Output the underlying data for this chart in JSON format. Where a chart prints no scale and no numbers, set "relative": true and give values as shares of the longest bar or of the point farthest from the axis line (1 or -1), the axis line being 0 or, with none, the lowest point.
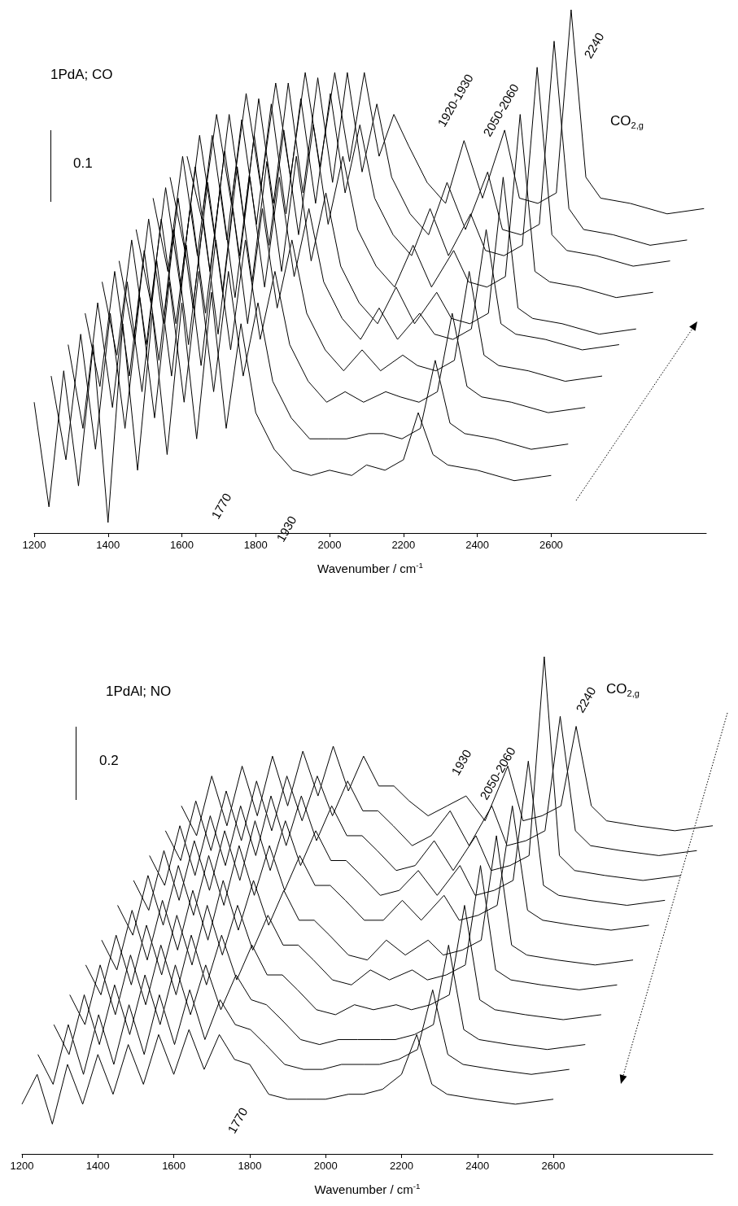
{
  "chart_data": [
    {
      "type": "line",
      "title": "1PdA; CO",
      "xlabel": "Wavenumber / cm$^{-1}$",
      "relative": true,
      "marker": "none",
      "line_style": "solid",
      "xlim": [
        1200,
        3020
      ],
      "xticks": [
        1200,
        1400,
        1600,
        1800,
        2000,
        2200,
        2400,
        2600
      ],
      "annotations": [
        "0.1",
        "CO$_{2,g}$",
        "1770",
        "1930",
        "1920-1930",
        "2050-2060",
        "2240"
      ],
      "series": [
        {
          "color": "#000000",
          "x": [
            1200,
            1240,
            1280,
            1320,
            1360,
            1400,
            1440,
            1480,
            1520,
            1560,
            1600,
            1640,
            1680,
            1720,
            1760,
            1800,
            1850,
            1900,
            1950,
            2000,
            2060,
            2100,
            2150,
            2200,
            2240,
            2280,
            2320,
            2400,
            2500,
            2600
          ],
          "values": [
            0.25,
            0.05,
            0.31,
            0.09,
            0.36,
            0.02,
            0.4,
            0.12,
            0.42,
            0.15,
            0.44,
            0.18,
            0.46,
            0.2,
            0.4,
            0.23,
            0.16,
            0.12,
            0.11,
            0.12,
            0.11,
            0.13,
            0.12,
            0.14,
            0.23,
            0.15,
            0.13,
            0.12,
            0.1,
            0.11
          ]
        },
        {
          "color": "#000000",
          "x": [
            1246,
            1286,
            1326,
            1366,
            1406,
            1446,
            1486,
            1526,
            1566,
            1606,
            1646,
            1686,
            1726,
            1766,
            1806,
            1846,
            1896,
            1946,
            1996,
            2046,
            2106,
            2146,
            2196,
            2246,
            2286,
            2326,
            2366,
            2446,
            2546,
            2646
          ],
          "values": [
            0.3,
            0.14,
            0.38,
            0.16,
            0.42,
            0.2,
            0.45,
            0.22,
            0.48,
            0.25,
            0.5,
            0.27,
            0.5,
            0.3,
            0.44,
            0.29,
            0.22,
            0.18,
            0.18,
            0.18,
            0.19,
            0.19,
            0.18,
            0.2,
            0.33,
            0.21,
            0.19,
            0.18,
            0.16,
            0.17
          ]
        },
        {
          "color": "#000000",
          "x": [
            1292,
            1332,
            1372,
            1412,
            1452,
            1492,
            1532,
            1572,
            1612,
            1652,
            1692,
            1732,
            1772,
            1812,
            1852,
            1892,
            1942,
            1992,
            2042,
            2092,
            2152,
            2192,
            2242,
            2292,
            2332,
            2372,
            2412,
            2492,
            2592,
            2692
          ],
          "values": [
            0.36,
            0.2,
            0.44,
            0.24,
            0.48,
            0.27,
            0.52,
            0.3,
            0.55,
            0.32,
            0.56,
            0.35,
            0.56,
            0.37,
            0.5,
            0.36,
            0.29,
            0.25,
            0.27,
            0.25,
            0.27,
            0.26,
            0.25,
            0.27,
            0.42,
            0.28,
            0.26,
            0.25,
            0.23,
            0.24
          ]
        },
        {
          "color": "#000000",
          "x": [
            1338,
            1378,
            1418,
            1458,
            1498,
            1538,
            1578,
            1618,
            1658,
            1698,
            1738,
            1778,
            1818,
            1858,
            1898,
            1938,
            1988,
            2038,
            2088,
            2138,
            2198,
            2238,
            2288,
            2338,
            2378,
            2418,
            2458,
            2538,
            2638,
            2738
          ],
          "values": [
            0.42,
            0.28,
            0.5,
            0.3,
            0.54,
            0.33,
            0.58,
            0.36,
            0.6,
            0.38,
            0.62,
            0.4,
            0.62,
            0.43,
            0.56,
            0.42,
            0.35,
            0.31,
            0.35,
            0.31,
            0.34,
            0.32,
            0.31,
            0.33,
            0.5,
            0.34,
            0.32,
            0.31,
            0.29,
            0.3
          ]
        },
        {
          "color": "#000000",
          "x": [
            1384,
            1424,
            1464,
            1504,
            1544,
            1584,
            1624,
            1664,
            1704,
            1744,
            1784,
            1824,
            1864,
            1904,
            1944,
            1984,
            2034,
            2084,
            2134,
            2184,
            2244,
            2284,
            2334,
            2384,
            2424,
            2464,
            2504,
            2584,
            2684,
            2784
          ],
          "values": [
            0.48,
            0.34,
            0.56,
            0.36,
            0.6,
            0.4,
            0.63,
            0.42,
            0.66,
            0.45,
            0.68,
            0.47,
            0.68,
            0.49,
            0.62,
            0.48,
            0.41,
            0.37,
            0.43,
            0.37,
            0.42,
            0.38,
            0.37,
            0.39,
            0.58,
            0.4,
            0.38,
            0.37,
            0.35,
            0.36
          ]
        },
        {
          "color": "#000000",
          "x": [
            1430,
            1470,
            1510,
            1550,
            1590,
            1630,
            1670,
            1710,
            1750,
            1790,
            1830,
            1870,
            1910,
            1950,
            1990,
            2030,
            2080,
            2130,
            2180,
            2230,
            2290,
            2330,
            2380,
            2430,
            2470,
            2510,
            2550,
            2630,
            2730,
            2830
          ],
          "values": [
            0.52,
            0.37,
            0.6,
            0.4,
            0.64,
            0.43,
            0.67,
            0.46,
            0.7,
            0.48,
            0.71,
            0.5,
            0.72,
            0.52,
            0.65,
            0.51,
            0.44,
            0.4,
            0.47,
            0.4,
            0.46,
            0.41,
            0.4,
            0.42,
            0.68,
            0.43,
            0.41,
            0.4,
            0.38,
            0.39
          ]
        },
        {
          "color": "#000000",
          "x": [
            1476,
            1516,
            1556,
            1596,
            1636,
            1676,
            1716,
            1756,
            1796,
            1836,
            1876,
            1916,
            1956,
            1996,
            2036,
            2076,
            2126,
            2176,
            2226,
            2276,
            2336,
            2376,
            2426,
            2476,
            2516,
            2556,
            2596,
            2676,
            2776,
            2876
          ],
          "values": [
            0.58,
            0.44,
            0.66,
            0.47,
            0.7,
            0.5,
            0.73,
            0.53,
            0.76,
            0.55,
            0.77,
            0.57,
            0.78,
            0.59,
            0.72,
            0.58,
            0.51,
            0.47,
            0.55,
            0.47,
            0.54,
            0.48,
            0.47,
            0.49,
            0.8,
            0.5,
            0.48,
            0.47,
            0.45,
            0.46
          ]
        },
        {
          "color": "#000000",
          "x": [
            1522,
            1562,
            1602,
            1642,
            1682,
            1722,
            1762,
            1802,
            1842,
            1882,
            1922,
            1962,
            2002,
            2042,
            2082,
            2122,
            2172,
            2222,
            2272,
            2322,
            2382,
            2422,
            2472,
            2522,
            2562,
            2602,
            2642,
            2722,
            2822,
            2922
          ],
          "values": [
            0.64,
            0.5,
            0.72,
            0.53,
            0.76,
            0.56,
            0.79,
            0.59,
            0.82,
            0.61,
            0.83,
            0.63,
            0.84,
            0.65,
            0.78,
            0.64,
            0.57,
            0.53,
            0.62,
            0.53,
            0.61,
            0.54,
            0.53,
            0.55,
            0.89,
            0.57,
            0.54,
            0.53,
            0.51,
            0.52
          ]
        },
        {
          "color": "#000000",
          "x": [
            1568,
            1608,
            1648,
            1688,
            1728,
            1768,
            1808,
            1848,
            1888,
            1928,
            1968,
            2008,
            2048,
            2088,
            2128,
            2168,
            2218,
            2268,
            2318,
            2368,
            2428,
            2468,
            2518,
            2568,
            2608,
            2648,
            2688,
            2768,
            2868,
            2968
          ],
          "values": [
            0.68,
            0.54,
            0.76,
            0.57,
            0.8,
            0.6,
            0.83,
            0.63,
            0.86,
            0.65,
            0.87,
            0.67,
            0.88,
            0.69,
            0.82,
            0.68,
            0.61,
            0.57,
            0.67,
            0.58,
            0.69,
            0.58,
            0.57,
            0.59,
            0.94,
            0.62,
            0.58,
            0.57,
            0.55,
            0.56
          ]
        },
        {
          "color": "#000000",
          "x": [
            1614,
            1654,
            1694,
            1734,
            1774,
            1814,
            1854,
            1894,
            1934,
            1974,
            2014,
            2054,
            2094,
            2134,
            2174,
            2214,
            2264,
            2314,
            2364,
            2414,
            2474,
            2514,
            2564,
            2614,
            2654,
            2694,
            2734,
            2814,
            2914,
            3014
          ],
          "values": [
            0.72,
            0.6,
            0.8,
            0.63,
            0.84,
            0.66,
            0.86,
            0.68,
            0.88,
            0.7,
            0.88,
            0.71,
            0.88,
            0.72,
            0.8,
            0.74,
            0.67,
            0.63,
            0.75,
            0.64,
            0.77,
            0.64,
            0.63,
            0.65,
            1.0,
            0.68,
            0.64,
            0.63,
            0.61,
            0.62
          ]
        }
      ]
    },
    {
      "type": "line",
      "title": "1PdAl; NO",
      "xlabel": "Wavenumber / cm$^{-1}$",
      "relative": true,
      "marker": "none",
      "line_style": "solid",
      "xlim": [
        1200,
        3020
      ],
      "xticks": [
        1200,
        1400,
        1600,
        1800,
        2000,
        2200,
        2400,
        2600
      ],
      "annotations": [
        "0.2",
        "CO$_{2,g}$",
        "1770",
        "1930",
        "2050-2060",
        "2240"
      ],
      "series": [
        {
          "color": "#000000",
          "x": [
            1200,
            1240,
            1280,
            1320,
            1360,
            1400,
            1440,
            1480,
            1520,
            1560,
            1600,
            1640,
            1680,
            1720,
            1760,
            1800,
            1850,
            1900,
            1950,
            2000,
            2060,
            2100,
            2150,
            2200,
            2240,
            2280,
            2320,
            2400,
            2500,
            2600
          ],
          "values": [
            0.1,
            0.16,
            0.06,
            0.18,
            0.1,
            0.2,
            0.12,
            0.22,
            0.14,
            0.24,
            0.16,
            0.25,
            0.17,
            0.24,
            0.19,
            0.18,
            0.12,
            0.11,
            0.11,
            0.11,
            0.12,
            0.12,
            0.13,
            0.16,
            0.24,
            0.14,
            0.12,
            0.11,
            0.1,
            0.11
          ]
        },
        {
          "color": "#000000",
          "x": [
            1242,
            1282,
            1322,
            1362,
            1402,
            1442,
            1482,
            1522,
            1562,
            1602,
            1642,
            1682,
            1722,
            1762,
            1802,
            1842,
            1892,
            1942,
            1992,
            2042,
            2102,
            2142,
            2192,
            2242,
            2282,
            2322,
            2362,
            2442,
            2542,
            2642
          ],
          "values": [
            0.2,
            0.14,
            0.26,
            0.16,
            0.28,
            0.18,
            0.3,
            0.2,
            0.32,
            0.22,
            0.33,
            0.23,
            0.31,
            0.26,
            0.25,
            0.22,
            0.18,
            0.17,
            0.17,
            0.18,
            0.18,
            0.18,
            0.19,
            0.21,
            0.33,
            0.2,
            0.18,
            0.17,
            0.16,
            0.17
          ]
        },
        {
          "color": "#000000",
          "x": [
            1284,
            1324,
            1364,
            1404,
            1444,
            1484,
            1524,
            1564,
            1604,
            1644,
            1684,
            1724,
            1764,
            1804,
            1844,
            1884,
            1934,
            1984,
            2034,
            2084,
            2144,
            2184,
            2234,
            2284,
            2324,
            2364,
            2404,
            2484,
            2584,
            2684
          ],
          "values": [
            0.26,
            0.2,
            0.32,
            0.22,
            0.34,
            0.24,
            0.36,
            0.26,
            0.38,
            0.28,
            0.38,
            0.29,
            0.36,
            0.31,
            0.3,
            0.27,
            0.23,
            0.22,
            0.23,
            0.23,
            0.23,
            0.23,
            0.24,
            0.26,
            0.42,
            0.25,
            0.23,
            0.22,
            0.21,
            0.22
          ]
        },
        {
          "color": "#000000",
          "x": [
            1326,
            1366,
            1406,
            1446,
            1486,
            1526,
            1566,
            1606,
            1646,
            1686,
            1726,
            1766,
            1806,
            1846,
            1886,
            1926,
            1976,
            2026,
            2076,
            2126,
            2186,
            2226,
            2276,
            2326,
            2366,
            2406,
            2446,
            2526,
            2626,
            2726
          ],
          "values": [
            0.32,
            0.26,
            0.38,
            0.28,
            0.4,
            0.3,
            0.42,
            0.32,
            0.44,
            0.34,
            0.44,
            0.35,
            0.42,
            0.36,
            0.36,
            0.33,
            0.29,
            0.28,
            0.3,
            0.29,
            0.3,
            0.29,
            0.3,
            0.32,
            0.5,
            0.31,
            0.29,
            0.28,
            0.27,
            0.28
          ]
        },
        {
          "color": "#000000",
          "x": [
            1368,
            1408,
            1448,
            1488,
            1528,
            1568,
            1608,
            1648,
            1688,
            1728,
            1768,
            1808,
            1848,
            1888,
            1928,
            1968,
            2018,
            2068,
            2118,
            2168,
            2228,
            2268,
            2318,
            2368,
            2408,
            2448,
            2488,
            2568,
            2668,
            2768
          ],
          "values": [
            0.38,
            0.32,
            0.44,
            0.34,
            0.46,
            0.36,
            0.48,
            0.38,
            0.5,
            0.4,
            0.5,
            0.41,
            0.48,
            0.42,
            0.42,
            0.39,
            0.35,
            0.34,
            0.37,
            0.35,
            0.37,
            0.35,
            0.36,
            0.38,
            0.58,
            0.37,
            0.35,
            0.34,
            0.33,
            0.34
          ]
        },
        {
          "color": "#000000",
          "x": [
            1410,
            1450,
            1490,
            1530,
            1570,
            1610,
            1650,
            1690,
            1730,
            1770,
            1810,
            1850,
            1890,
            1930,
            1970,
            2010,
            2060,
            2110,
            2160,
            2210,
            2270,
            2310,
            2360,
            2410,
            2450,
            2490,
            2530,
            2610,
            2710,
            2810
          ],
          "values": [
            0.43,
            0.37,
            0.49,
            0.39,
            0.51,
            0.41,
            0.53,
            0.43,
            0.55,
            0.45,
            0.55,
            0.46,
            0.53,
            0.47,
            0.47,
            0.44,
            0.4,
            0.39,
            0.43,
            0.4,
            0.43,
            0.4,
            0.41,
            0.43,
            0.64,
            0.42,
            0.4,
            0.39,
            0.38,
            0.39
          ]
        },
        {
          "color": "#000000",
          "x": [
            1452,
            1492,
            1532,
            1572,
            1612,
            1652,
            1692,
            1732,
            1772,
            1812,
            1852,
            1892,
            1932,
            1972,
            2012,
            2052,
            2102,
            2152,
            2202,
            2252,
            2312,
            2352,
            2402,
            2452,
            2492,
            2532,
            2572,
            2652,
            2752,
            2852
          ],
          "values": [
            0.5,
            0.44,
            0.56,
            0.46,
            0.58,
            0.48,
            0.6,
            0.5,
            0.62,
            0.52,
            0.62,
            0.53,
            0.6,
            0.54,
            0.54,
            0.51,
            0.47,
            0.47,
            0.51,
            0.47,
            0.52,
            0.47,
            0.48,
            0.5,
            0.7,
            0.49,
            0.47,
            0.46,
            0.45,
            0.46
          ]
        },
        {
          "color": "#000000",
          "x": [
            1494,
            1534,
            1574,
            1614,
            1654,
            1694,
            1734,
            1774,
            1814,
            1854,
            1894,
            1934,
            1974,
            2014,
            2054,
            2094,
            2144,
            2194,
            2244,
            2294,
            2354,
            2394,
            2444,
            2494,
            2534,
            2574,
            2614,
            2694,
            2794,
            2894
          ],
          "values": [
            0.55,
            0.49,
            0.61,
            0.51,
            0.63,
            0.53,
            0.65,
            0.55,
            0.67,
            0.57,
            0.67,
            0.58,
            0.65,
            0.59,
            0.59,
            0.56,
            0.52,
            0.53,
            0.57,
            0.52,
            0.58,
            0.52,
            0.53,
            0.55,
            0.79,
            0.54,
            0.52,
            0.51,
            0.5,
            0.51
          ]
        },
        {
          "color": "#000000",
          "x": [
            1536,
            1576,
            1616,
            1656,
            1696,
            1736,
            1776,
            1816,
            1856,
            1896,
            1936,
            1976,
            2016,
            2056,
            2096,
            2136,
            2186,
            2236,
            2286,
            2336,
            2396,
            2436,
            2486,
            2536,
            2576,
            2616,
            2656,
            2736,
            2836,
            2936
          ],
          "values": [
            0.6,
            0.54,
            0.66,
            0.56,
            0.68,
            0.58,
            0.7,
            0.6,
            0.72,
            0.62,
            0.72,
            0.63,
            0.7,
            0.64,
            0.64,
            0.61,
            0.57,
            0.58,
            0.63,
            0.57,
            0.64,
            0.57,
            0.58,
            0.6,
            1.0,
            0.6,
            0.57,
            0.56,
            0.55,
            0.56
          ]
        },
        {
          "color": "#000000",
          "x": [
            1578,
            1618,
            1658,
            1698,
            1738,
            1778,
            1818,
            1858,
            1898,
            1938,
            1978,
            2018,
            2058,
            2098,
            2138,
            2178,
            2228,
            2278,
            2328,
            2378,
            2438,
            2478,
            2528,
            2578,
            2618,
            2658,
            2698,
            2778,
            2878,
            2978
          ],
          "values": [
            0.65,
            0.59,
            0.71,
            0.61,
            0.73,
            0.63,
            0.75,
            0.65,
            0.76,
            0.67,
            0.76,
            0.68,
            0.75,
            0.69,
            0.69,
            0.66,
            0.62,
            0.64,
            0.69,
            0.62,
            0.7,
            0.62,
            0.63,
            0.65,
            0.88,
            0.65,
            0.62,
            0.61,
            0.6,
            0.61
          ]
        },
        {
          "color": "#000000",
          "x": [
            1620,
            1660,
            1700,
            1740,
            1780,
            1820,
            1860,
            1900,
            1940,
            1980,
            2020,
            2060,
            2100,
            2140,
            2180,
            2220,
            2270,
            2320,
            2370,
            2420,
            2480,
            2520,
            2570,
            2620,
            2660,
            2700,
            2740,
            2820,
            2920,
            3020
          ],
          "values": [
            0.7,
            0.64,
            0.76,
            0.66,
            0.78,
            0.68,
            0.8,
            0.7,
            0.81,
            0.72,
            0.82,
            0.73,
            0.8,
            0.74,
            0.74,
            0.71,
            0.68,
            0.7,
            0.72,
            0.67,
            0.78,
            0.67,
            0.68,
            0.7,
            0.86,
            0.7,
            0.67,
            0.66,
            0.65,
            0.66
          ]
        }
      ]
    }
  ]
}
